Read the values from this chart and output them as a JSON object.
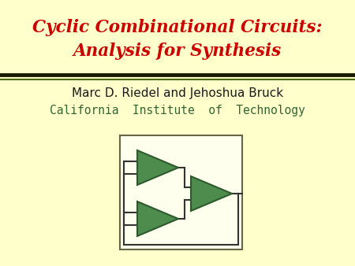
{
  "bg_color": "#FFFFCC",
  "title_line1": "Cyclic Combinational Circuits:",
  "title_line2": "Analysis for Synthesis",
  "title_color": "#CC0000",
  "title_fontsize": 15.5,
  "author": "Marc D. Riedel and Jehoshua Bruck",
  "author_fontsize": 11,
  "author_color": "#1a1a1a",
  "affiliation": "California  Institute  of  Technology",
  "affiliation_color": "#336633",
  "affiliation_fontsize": 10.5,
  "sep_color_thick": "#1a1a00",
  "sep_color_green": "#4a6600",
  "gate_fill": "#4d8c4d",
  "gate_edge": "#2d5a2d",
  "box_edge": "#666644",
  "box_fill": "#FFFFEE",
  "wire_color": "#333333"
}
